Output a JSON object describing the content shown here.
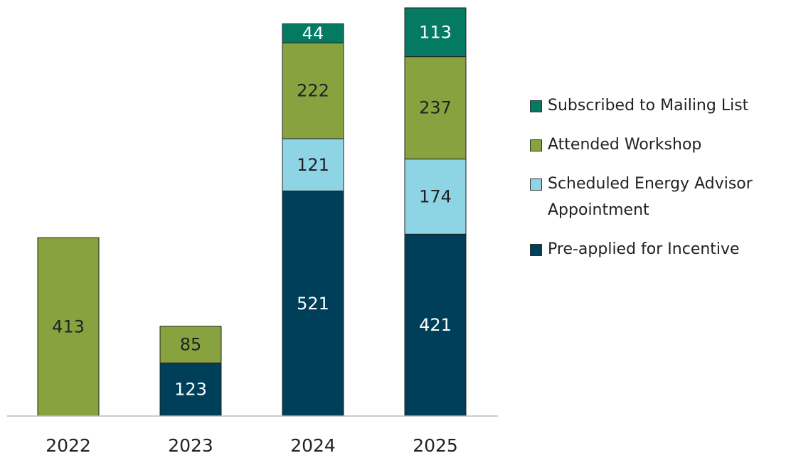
{
  "chart_data": {
    "type": "stacked_bar",
    "categories": [
      "2022",
      "2023",
      "2024",
      "2025"
    ],
    "series": [
      {
        "name": "Pre-applied for Incentive",
        "color": "#003f5a",
        "values": [
          null,
          123,
          521,
          421
        ]
      },
      {
        "name": "Scheduled Energy Advisor Appointment",
        "color": "#8dd4e5",
        "values": [
          null,
          null,
          121,
          174
        ]
      },
      {
        "name": "Attended Workshop",
        "color": "#87a23f",
        "values": [
          413,
          85,
          222,
          237
        ]
      },
      {
        "name": "Subscribed to Mailing List",
        "color": "#047a63",
        "values": [
          null,
          null,
          44,
          113
        ]
      }
    ]
  }
}
